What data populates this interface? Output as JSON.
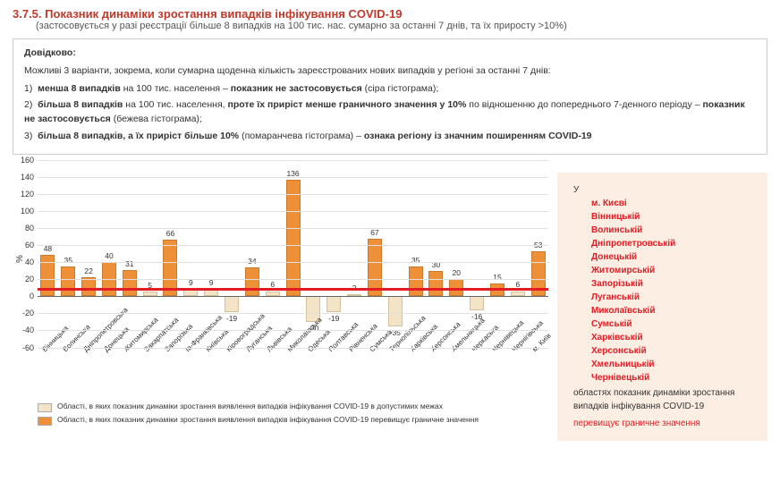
{
  "header": {
    "number": "3.7.5.",
    "title": "Показник динаміки зростання випадків інфікування COVID-19",
    "subtitle": "(застосовується у разі реєстрації більше 8 випадків на 100 тис. нас. сумарно за останні 7 днів, та їх приросту >10%)"
  },
  "info": {
    "label": "Довідково:",
    "intro": "Можливі 3 варіанти, зокрема, коли сумарна щоденна кількість зареєстрованих нових випадків у регіоні за останні 7 днів:",
    "items": [
      "<b>менша 8 випадків</b> на 100 тис. населення – <b>показник не застосовується</b> (сіра гістограма);",
      "<b>більша 8 випадків</b> на 100 тис. населення, <b>проте їх приріст менше граничного значення у 10%</b> по відношенню до попереднього 7-денного періоду – <b>показник не застосовується</b> (бежева гістограма);",
      "<b>більша 8 випадків, а їх приріст більше 10%</b> (помаранчева гістограма) – <b>ознака регіону із значним поширенням COVID-19</b>"
    ]
  },
  "chart": {
    "type": "bar",
    "ylabel": "%",
    "ylim": [
      -60,
      160
    ],
    "ytick_step": 20,
    "threshold": 10,
    "colors": {
      "exceeds": "#ed9037",
      "within": "#f3e3c7",
      "grid": "#e0e0e0",
      "threshold": "#e31b23"
    },
    "categories": [
      "Вінницька",
      "Волинська",
      "Дніпропетровська",
      "Донецька",
      "Житомирська",
      "Закарпатська",
      "Запорізька",
      "Ів-Франківська",
      "Київська",
      "Кіровоградська",
      "Луганська",
      "Львівська",
      "Миколаївська",
      "Одеська",
      "Полтавська",
      "Рівненська",
      "Сумська",
      "Тернопільська",
      "Харківська",
      "Херсонська",
      "Хмельницька",
      "Черкаська",
      "Чернівецька",
      "Чернігівська",
      "м. Київ"
    ],
    "values": [
      48,
      35,
      22,
      40,
      31,
      5,
      66,
      9,
      9,
      -19,
      34,
      6,
      136,
      -30,
      -19,
      2,
      67,
      -35,
      35,
      30,
      20,
      -16,
      15,
      6,
      53
    ],
    "exceeds": [
      true,
      true,
      true,
      true,
      true,
      false,
      true,
      false,
      false,
      false,
      true,
      false,
      true,
      false,
      false,
      false,
      true,
      false,
      true,
      true,
      true,
      false,
      true,
      false,
      true
    ]
  },
  "legend": {
    "within": "Області, в яких показник динаміки зростання виявлення випадків інфікування COVID-19 в допустимих межах",
    "exceeds": "Області, в яких показник динаміки зростання виявлення випадків інфікування COVID-19 перевищує граничне значення"
  },
  "side": {
    "intro_prefix": "У",
    "regions": [
      "м. Києві",
      "Вінницькій",
      "Волинській",
      "Дніпропетровській",
      "Донецькій",
      "Житомирській",
      "Запорізькій",
      "Луганській",
      "Миколаївській",
      "Сумській",
      "Харківській",
      "Херсонській",
      "Хмельницькій",
      "Чернівецькій"
    ],
    "outro": "областях показник динаміки зростання випадків інфікування COVID-19",
    "below": "перевищує граничне значення"
  },
  "watermark": ""
}
